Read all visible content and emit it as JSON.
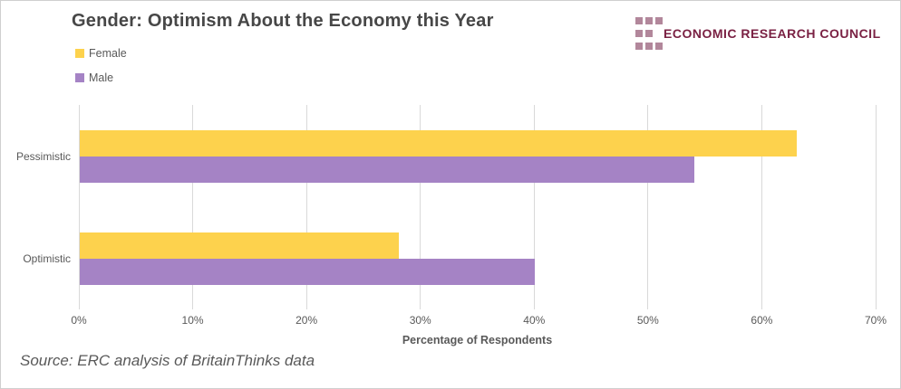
{
  "header": {
    "title": "Gender: Optimism About the Economy this Year",
    "logo": {
      "text": "ECONOMIC RESEARCH COUNCIL",
      "text_color": "#7A2143",
      "square_color": "#B2879B"
    }
  },
  "chart_data": {
    "type": "bar",
    "orientation": "horizontal",
    "title": "Gender: Optimism About the Economy this Year",
    "categories": [
      "Pessimistic",
      "Optimistic"
    ],
    "series": [
      {
        "name": "Female",
        "color": "#FDD24D",
        "values": [
          63,
          28
        ]
      },
      {
        "name": "Male",
        "color": "#A583C5",
        "values": [
          54,
          40
        ]
      }
    ],
    "xlabel": "Percentage of Respondents",
    "ylabel": "",
    "x_ticks": [
      "0%",
      "10%",
      "20%",
      "30%",
      "40%",
      "50%",
      "60%",
      "70%"
    ],
    "xlim": [
      0,
      70
    ],
    "grid": "vertical",
    "gridline_color": "#d9d9d9",
    "legend_position": "top-left"
  },
  "footer": {
    "source": "Source: ERC analysis of BritainThinks data"
  }
}
